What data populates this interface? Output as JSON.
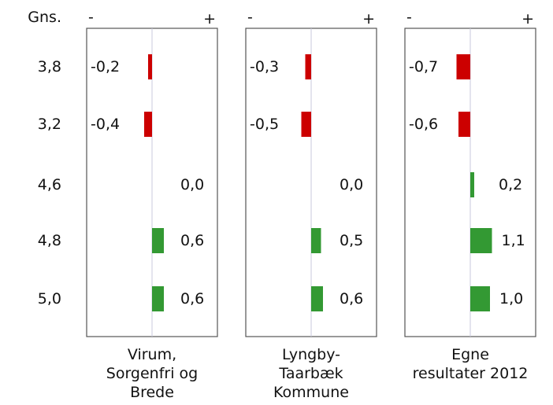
{
  "chart_data": {
    "type": "bar",
    "orientation": "horizontal",
    "row_header": "Gns.",
    "row_labels": [
      "3,8",
      "3,2",
      "4,6",
      "4,8",
      "5,0"
    ],
    "negative_sign": "-",
    "positive_sign": "+",
    "xlim": [
      -1.5,
      1.5
    ],
    "colors": {
      "positive": "#339933",
      "negative": "#cc0000"
    },
    "panels": [
      {
        "caption": [
          "Virum,",
          "Sorgenfri og",
          "Brede"
        ],
        "values": [
          -0.2,
          -0.4,
          0.0,
          0.6,
          0.6
        ],
        "value_labels": [
          "-0,2",
          "-0,4",
          "0,0",
          "0,6",
          "0,6"
        ]
      },
      {
        "caption": [
          "Lyngby-",
          "Taarbæk",
          "Kommune"
        ],
        "values": [
          -0.3,
          -0.5,
          0.0,
          0.5,
          0.6
        ],
        "value_labels": [
          "-0,3",
          "-0,5",
          "0,0",
          "0,5",
          "0,6"
        ]
      },
      {
        "caption": [
          "Egne",
          "resultater 2012"
        ],
        "values": [
          -0.7,
          -0.6,
          0.2,
          1.1,
          1.0
        ],
        "value_labels": [
          "-0,7",
          "-0,6",
          "0,2",
          "1,1",
          "1,0"
        ]
      }
    ]
  }
}
